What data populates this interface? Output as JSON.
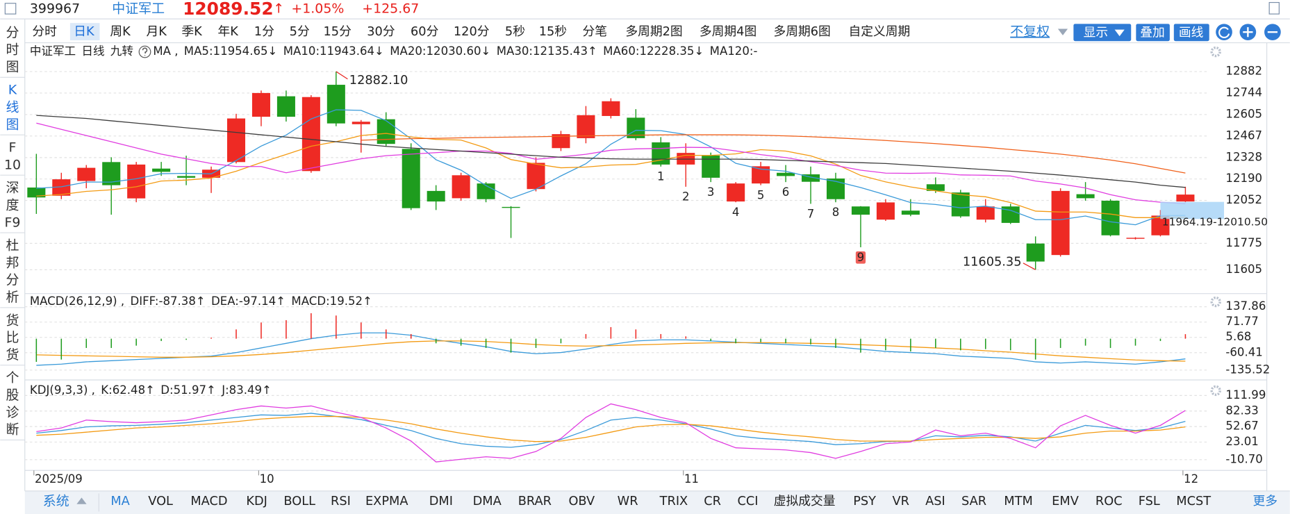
{
  "header": {
    "code": "399967",
    "name": "中证军工",
    "price": 12089.52,
    "arrow": "↑",
    "change_pct": "+1.05%",
    "change": "+125.67"
  },
  "sidebar": [
    [
      "分",
      "时",
      "图"
    ],
    [
      "K",
      "线",
      "图"
    ],
    [
      "F",
      "10"
    ],
    [
      "深",
      "度",
      "F9"
    ],
    [
      "杜",
      "邦",
      "分",
      "析"
    ],
    [
      "货",
      "比",
      "货"
    ],
    [
      "个",
      "股",
      "诊",
      "断"
    ]
  ],
  "sidebar_active": 1,
  "periods": [
    "分时",
    "日K",
    "周K",
    "月K",
    "季K",
    "年K",
    "1分",
    "5分",
    "15分",
    "30分",
    "60分",
    "120分",
    "5秒",
    "15秒",
    "分笔",
    "多周期2图",
    "多周期4图",
    "多周期6图",
    "自定义周期"
  ],
  "period_active": 1,
  "buttons": {
    "adjust": "不复权",
    "show": "显示",
    "overlay": "叠加",
    "draw": "画线"
  },
  "indicator_group": "系统",
  "indicator_tabs": [
    "MA",
    "VOL",
    "MACD",
    "KDJ",
    "BOLL",
    "RSI",
    "EXPMA",
    "DMI",
    "DMA",
    "BRAR",
    "OBV",
    "WR",
    "TRIX",
    "CR",
    "CCI",
    "虚拟成交量",
    "PSY",
    "VR",
    "ASI",
    "SAR",
    "MTM",
    "EMV",
    "ROC",
    "FSL",
    "MCST"
  ],
  "indicator_active": 0,
  "more": "更多",
  "chart_data": [
    {
      "type": "candlestick",
      "name": "中证军工",
      "period": "日线",
      "nine_label": "九转",
      "ma_label": "MA ,",
      "up_color": "#ee2a24",
      "down_color": "#1e9c1e",
      "categories": [
        "2025/09",
        null,
        null,
        null,
        null,
        null,
        null,
        null,
        null,
        "10",
        null,
        null,
        null,
        null,
        null,
        null,
        null,
        null,
        null,
        null,
        null,
        null,
        null,
        null,
        null,
        null,
        "11",
        null,
        null,
        null,
        null,
        null,
        null,
        null,
        null,
        null,
        null,
        null,
        null,
        null,
        null,
        null,
        null,
        null,
        null,
        null,
        "12"
      ],
      "open": [
        12135,
        12082,
        12177,
        12299,
        12065,
        12257,
        12209,
        12198,
        12299,
        12591,
        12723,
        12241,
        12797,
        12543,
        12575,
        12384,
        12113,
        12066,
        12161,
        12010,
        12125,
        12389,
        12453,
        12596,
        12585,
        12426,
        12283,
        12341,
        12045,
        12161,
        12230,
        12220,
        12193,
        12013,
        11928,
        11986,
        12156,
        12103,
        11928,
        12013,
        11774,
        11700,
        12092,
        12050,
        11806,
        11827,
        12045
      ],
      "high": [
        12352,
        12230,
        12280,
        12330,
        12300,
        12300,
        12340,
        12270,
        12610,
        12760,
        12760,
        12730,
        12882.1,
        12570,
        12620,
        12420,
        12150,
        12230,
        12170,
        12015,
        12330,
        12500,
        12660,
        12710,
        12640,
        12460,
        12420,
        12360,
        12170,
        12300,
        12280,
        12270,
        12230,
        12015,
        12060,
        12060,
        12200,
        12120,
        12060,
        12030,
        11820,
        12130,
        12170,
        12060,
        11815,
        11990,
        12140
      ],
      "low": [
        11965,
        12060,
        12130,
        11960,
        12040,
        12210,
        12150,
        12100,
        12290,
        12530,
        12560,
        12230,
        12530,
        12360,
        12400,
        11990,
        11990,
        12050,
        12040,
        11810,
        12110,
        12370,
        12420,
        12580,
        12440,
        12270,
        12140,
        12170,
        12040,
        12150,
        12170,
        12030,
        12040,
        11750,
        11920,
        11950,
        12100,
        11940,
        11910,
        11900,
        11605.35,
        11690,
        12050,
        11820,
        11800,
        11820,
        12040
      ],
      "close": [
        12071,
        12188,
        12262,
        12150,
        12283,
        12236,
        12198,
        12250,
        12580,
        12744,
        12591,
        12718,
        12548,
        12559,
        12416,
        12002,
        12045,
        12214,
        12060,
        12005,
        12294,
        12479,
        12601,
        12691,
        12453,
        12283,
        12358,
        12198,
        12161,
        12272,
        12209,
        12172,
        12060,
        11960,
        12039,
        11960,
        12113,
        11949,
        12013,
        11907,
        11658,
        12113,
        12066,
        11827,
        11811,
        11954,
        12089.52
      ],
      "series": [
        {
          "name": "MA5:11954.65↓",
          "color": "#3a9ad9",
          "values": [
            12130,
            12140,
            12170,
            12170,
            12191,
            12224,
            12226,
            12223,
            12309,
            12402,
            12473,
            12577,
            12636,
            12632,
            12566,
            12449,
            12314,
            12247,
            12147,
            12065,
            12124,
            12210,
            12288,
            12414,
            12504,
            12501,
            12477,
            12397,
            12291,
            12254,
            12240,
            12202,
            12175,
            12135,
            12088,
            12038,
            12026,
            12004,
            12015,
            11988,
            11928,
            11928,
            11951,
            11914,
            11895,
            11954,
            11954.65
          ]
        },
        {
          "name": "MA10:11943.64↓",
          "color": "#f39a12",
          "values": [
            12080,
            12090,
            12110,
            12120,
            12140,
            12177,
            12183,
            12196,
            12240,
            12296,
            12348,
            12401,
            12430,
            12470,
            12484,
            12461,
            12445,
            12441,
            12390,
            12315,
            12286,
            12262,
            12267,
            12280,
            12284,
            12312,
            12343,
            12342,
            12352,
            12379,
            12370,
            12339,
            12286,
            12213,
            12171,
            12139,
            12114,
            12089,
            12075,
            12038,
            11983,
            11977,
            11977,
            11964,
            11941,
            11941,
            11943.64
          ]
        },
        {
          "name": "MA20:12030.60↓",
          "color": "#e03ce0",
          "values": [
            12550,
            12510,
            12470,
            12430,
            12390,
            12350,
            12320,
            12290,
            12270,
            12270,
            12230,
            12260,
            12290,
            12320,
            12340,
            12350,
            12360,
            12370,
            12370,
            12355,
            12317,
            12332,
            12349,
            12375,
            12384,
            12387,
            12394,
            12392,
            12371,
            12347,
            12328,
            12301,
            12277,
            12247,
            12228,
            12226,
            12229,
            12216,
            12214,
            12209,
            12177,
            12158,
            12132,
            12089,
            12056,
            12040,
            12030.6
          ]
        },
        {
          "name": "MA30:12135.43↑",
          "color": "#3c3c3c",
          "values": [
            12600,
            12590,
            12580,
            12565,
            12550,
            12535,
            12520,
            12505,
            12490,
            12475,
            12460,
            12445,
            12430,
            12415,
            12400,
            12390,
            12380,
            12370,
            12360,
            12350,
            12340,
            12330,
            12325,
            12320,
            12318,
            12318,
            12318,
            12318,
            12318,
            12315,
            12310,
            12305,
            12300,
            12295,
            12290,
            12280,
            12270,
            12260,
            12250,
            12240,
            12228,
            12215,
            12200,
            12185,
            12170,
            12150,
            12135.43
          ]
        },
        {
          "name": "MA60:12228.35↓",
          "color": "#f0601a",
          "values": [
            null,
            null,
            null,
            null,
            null,
            null,
            null,
            null,
            null,
            null,
            null,
            null,
            null,
            12440,
            12445,
            12450,
            12452,
            12455,
            12458,
            12460,
            12462,
            12465,
            12468,
            12470,
            12472,
            12474,
            12475,
            12475,
            12474,
            12472,
            12468,
            12462,
            12455,
            12447,
            12438,
            12428,
            12418,
            12406,
            12394,
            12380,
            12366,
            12350,
            12332,
            12312,
            12288,
            12258,
            12228.35
          ]
        }
      ],
      "extra_legend": "MA120:-",
      "extra_color": "#8a3fc8",
      "high_label": "12882.10",
      "low_label": "11605.35",
      "label_color": "#e8201c",
      "nine_turn": [
        1,
        2,
        3,
        4,
        5,
        6,
        7,
        8,
        9
      ],
      "nine_color": "#e020e0",
      "range_box": {
        "low": 11964.19,
        "high": 12010.5,
        "label": "11964.19-12010.50",
        "color": "#a9d5f7"
      },
      "ylim": [
        11462,
        13036
      ],
      "yticks": [
        12882,
        12744,
        12605,
        12467,
        12328,
        12190,
        12052,
        11775,
        11605
      ],
      "grid": true
    },
    {
      "type": "macd",
      "title": "MACD(26,12,9) ,",
      "up_color": "#ee2a24",
      "down_color": "#1e9c1e",
      "series": [
        {
          "name": "DIFF:-87.38↑",
          "color": "#3a9ad9",
          "values": [
            -115,
            -110,
            -100,
            -95,
            -90,
            -85,
            -80,
            -75,
            -60,
            -40,
            -20,
            0,
            15,
            25,
            25,
            15,
            -5,
            -20,
            -35,
            -55,
            -65,
            -60,
            -45,
            -25,
            -10,
            -5,
            -5,
            -10,
            -15,
            -20,
            -25,
            -30,
            -35,
            -45,
            -55,
            -60,
            -65,
            -75,
            -80,
            -85,
            -100,
            -105,
            -100,
            -105,
            -110,
            -100,
            -87.38
          ]
        },
        {
          "name": "DEA:-97.14↑",
          "color": "#f39a12",
          "values": [
            -70,
            -72,
            -74,
            -76,
            -78,
            -80,
            -80,
            -78,
            -74,
            -68,
            -60,
            -50,
            -40,
            -30,
            -20,
            -13,
            -10,
            -10,
            -12,
            -18,
            -25,
            -30,
            -32,
            -30,
            -27,
            -24,
            -20,
            -18,
            -17,
            -17,
            -18,
            -20,
            -22,
            -26,
            -30,
            -35,
            -40,
            -45,
            -52,
            -58,
            -66,
            -74,
            -80,
            -86,
            -92,
            -95,
            -97.14
          ]
        },
        {
          "name": "MACD:19.52↑",
          "color": "#e03ce0",
          "kind": "bar",
          "values": [
            -100,
            -90,
            -40,
            -40,
            -30,
            -10,
            -5,
            5,
            40,
            70,
            80,
            110,
            100,
            70,
            40,
            20,
            -20,
            -30,
            -40,
            -60,
            -40,
            -20,
            20,
            50,
            40,
            20,
            10,
            -10,
            -20,
            -15,
            -20,
            -25,
            -40,
            -60,
            -50,
            -55,
            -40,
            -50,
            -45,
            -50,
            -90,
            -40,
            -30,
            -40,
            -30,
            -10,
            19.52
          ]
        }
      ],
      "ylim": [
        -171,
        184
      ],
      "yticks": [
        137.86,
        71.77,
        5.68,
        -60.41,
        -135.52
      ],
      "grid": true
    },
    {
      "type": "line",
      "title": "KDJ(9,3,3) ,",
      "series": [
        {
          "name": "K:62.48↑",
          "color": "#3a9ad9",
          "values": [
            40,
            45,
            52,
            54,
            55,
            57,
            60,
            65,
            70,
            75,
            74,
            78,
            72,
            66,
            55,
            45,
            30,
            20,
            15,
            13,
            18,
            28,
            45,
            65,
            70,
            65,
            58,
            48,
            35,
            30,
            27,
            24,
            18,
            20,
            24,
            25,
            35,
            33,
            36,
            33,
            25,
            40,
            55,
            50,
            45,
            50,
            62.48
          ]
        },
        {
          "name": "D:51.97↑",
          "color": "#f39a12",
          "values": [
            36,
            38,
            42,
            46,
            50,
            52,
            55,
            58,
            62,
            67,
            70,
            72,
            72,
            70,
            65,
            58,
            48,
            40,
            33,
            27,
            24,
            25,
            32,
            42,
            52,
            56,
            57,
            54,
            48,
            42,
            37,
            33,
            28,
            25,
            25,
            25,
            28,
            30,
            32,
            32,
            30,
            33,
            40,
            44,
            44,
            46,
            51.97
          ]
        },
        {
          "name": "J:83.49↑",
          "color": "#e03ce0",
          "values": [
            43,
            50,
            65,
            62,
            60,
            62,
            65,
            75,
            85,
            92,
            88,
            92,
            80,
            70,
            50,
            25,
            -15,
            -10,
            -5,
            -8,
            5,
            30,
            70,
            96,
            85,
            70,
            60,
            30,
            12,
            10,
            8,
            3,
            -8,
            5,
            20,
            23,
            46,
            35,
            40,
            30,
            12,
            54,
            74,
            55,
            40,
            55,
            83.49
          ]
        }
      ],
      "ylim": [
        -28,
        137
      ],
      "yticks": [
        111.99,
        82.33,
        52.67,
        23.01,
        {
          "value": -10.7,
          "label": "-10.70"
        }
      ],
      "grid": true
    }
  ]
}
